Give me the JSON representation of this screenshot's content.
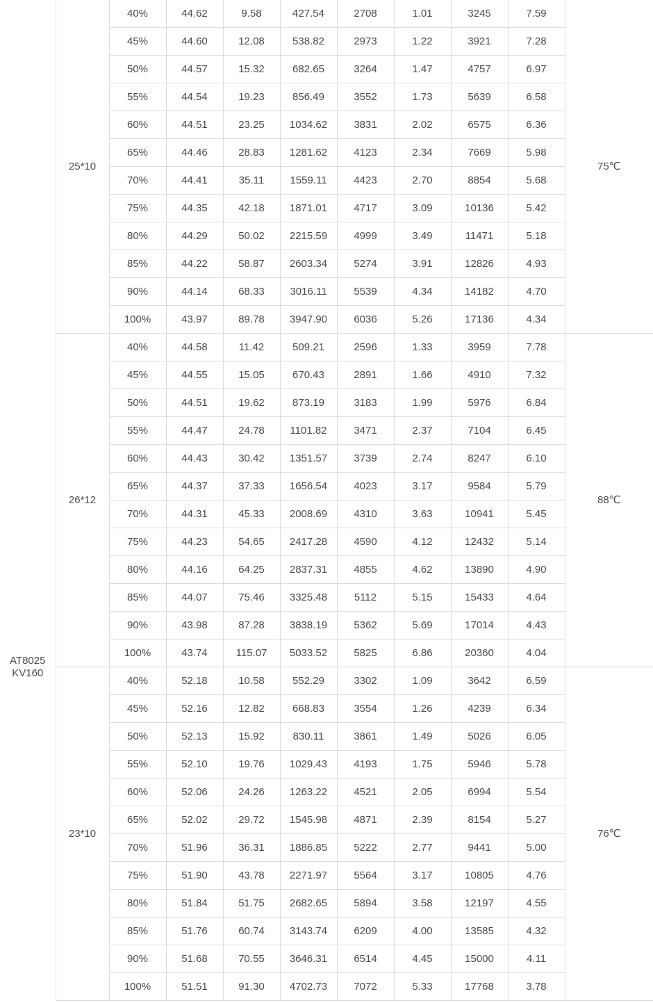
{
  "model": {
    "line1": "AT8025",
    "line2": "KV160"
  },
  "groups": [
    {
      "propeller": "25*10",
      "temperature": "75℃",
      "rows": [
        [
          "40%",
          "44.62",
          "9.58",
          "427.54",
          "2708",
          "1.01",
          "3245",
          "7.59"
        ],
        [
          "45%",
          "44.60",
          "12.08",
          "538.82",
          "2973",
          "1.22",
          "3921",
          "7.28"
        ],
        [
          "50%",
          "44.57",
          "15.32",
          "682.65",
          "3264",
          "1.47",
          "4757",
          "6.97"
        ],
        [
          "55%",
          "44.54",
          "19.23",
          "856.49",
          "3552",
          "1.73",
          "5639",
          "6.58"
        ],
        [
          "60%",
          "44.51",
          "23.25",
          "1034.62",
          "3831",
          "2.02",
          "6575",
          "6.36"
        ],
        [
          "65%",
          "44.46",
          "28.83",
          "1281.62",
          "4123",
          "2.34",
          "7669",
          "5.98"
        ],
        [
          "70%",
          "44.41",
          "35.11",
          "1559.11",
          "4423",
          "2.70",
          "8854",
          "5.68"
        ],
        [
          "75%",
          "44.35",
          "42.18",
          "1871.01",
          "4717",
          "3.09",
          "10136",
          "5.42"
        ],
        [
          "80%",
          "44.29",
          "50.02",
          "2215.59",
          "4999",
          "3.49",
          "11471",
          "5.18"
        ],
        [
          "85%",
          "44.22",
          "58.87",
          "2603.34",
          "5274",
          "3.91",
          "12826",
          "4.93"
        ],
        [
          "90%",
          "44.14",
          "68.33",
          "3016.11",
          "5539",
          "4.34",
          "14182",
          "4.70"
        ],
        [
          "100%",
          "43.97",
          "89.78",
          "3947.90",
          "6036",
          "5.26",
          "17136",
          "4.34"
        ]
      ]
    },
    {
      "propeller": "26*12",
      "temperature": "88℃",
      "rows": [
        [
          "40%",
          "44.58",
          "11.42",
          "509.21",
          "2596",
          "1.33",
          "3959",
          "7.78"
        ],
        [
          "45%",
          "44.55",
          "15.05",
          "670.43",
          "2891",
          "1.66",
          "4910",
          "7.32"
        ],
        [
          "50%",
          "44.51",
          "19.62",
          "873.19",
          "3183",
          "1.99",
          "5976",
          "6.84"
        ],
        [
          "55%",
          "44.47",
          "24.78",
          "1101.82",
          "3471",
          "2.37",
          "7104",
          "6.45"
        ],
        [
          "60%",
          "44.43",
          "30.42",
          "1351.57",
          "3739",
          "2.74",
          "8247",
          "6.10"
        ],
        [
          "65%",
          "44.37",
          "37.33",
          "1656.54",
          "4023",
          "3.17",
          "9584",
          "5.79"
        ],
        [
          "70%",
          "44.31",
          "45.33",
          "2008.69",
          "4310",
          "3.63",
          "10941",
          "5.45"
        ],
        [
          "75%",
          "44.23",
          "54.65",
          "2417.28",
          "4590",
          "4.12",
          "12432",
          "5.14"
        ],
        [
          "80%",
          "44.16",
          "64.25",
          "2837.31",
          "4855",
          "4.62",
          "13890",
          "4.90"
        ],
        [
          "85%",
          "44.07",
          "75.46",
          "3325.48",
          "5112",
          "5.15",
          "15433",
          "4.64"
        ],
        [
          "90%",
          "43.98",
          "87.28",
          "3838.19",
          "5362",
          "5.69",
          "17014",
          "4.43"
        ],
        [
          "100%",
          "43.74",
          "115.07",
          "5033.52",
          "5825",
          "6.86",
          "20360",
          "4.04"
        ]
      ]
    },
    {
      "propeller": "23*10",
      "temperature": "76℃",
      "rows": [
        [
          "40%",
          "52.18",
          "10.58",
          "552.29",
          "3302",
          "1.09",
          "3642",
          "6.59"
        ],
        [
          "45%",
          "52.16",
          "12.82",
          "668.83",
          "3554",
          "1.26",
          "4239",
          "6.34"
        ],
        [
          "50%",
          "52.13",
          "15.92",
          "830.11",
          "3861",
          "1.49",
          "5026",
          "6.05"
        ],
        [
          "55%",
          "52.10",
          "19.76",
          "1029.43",
          "4193",
          "1.75",
          "5946",
          "5.78"
        ],
        [
          "60%",
          "52.06",
          "24.26",
          "1263.22",
          "4521",
          "2.05",
          "6994",
          "5.54"
        ],
        [
          "65%",
          "52.02",
          "29.72",
          "1545.98",
          "4871",
          "2.39",
          "8154",
          "5.27"
        ],
        [
          "70%",
          "51.96",
          "36.31",
          "1886.85",
          "5222",
          "2.77",
          "9441",
          "5.00"
        ],
        [
          "75%",
          "51.90",
          "43.78",
          "2271.97",
          "5564",
          "3.17",
          "10805",
          "4.76"
        ],
        [
          "80%",
          "51.84",
          "51.75",
          "2682.65",
          "5894",
          "3.58",
          "12197",
          "4.55"
        ],
        [
          "85%",
          "51.76",
          "60.74",
          "3143.74",
          "6209",
          "4.00",
          "13585",
          "4.32"
        ],
        [
          "90%",
          "51.68",
          "70.55",
          "3646.31",
          "6514",
          "4.45",
          "15000",
          "4.11"
        ],
        [
          "100%",
          "51.51",
          "91.30",
          "4702.73",
          "7072",
          "5.33",
          "17768",
          "3.78"
        ]
      ]
    }
  ]
}
